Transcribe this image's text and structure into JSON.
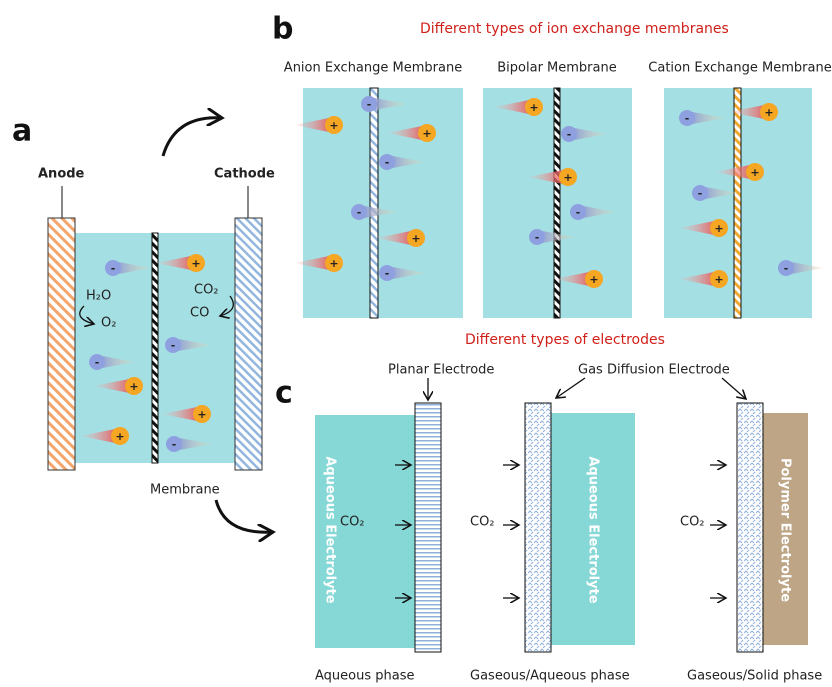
{
  "panel_a": {
    "label": "a",
    "anode": "Anode",
    "cathode": "Cathode",
    "membrane": "Membrane",
    "anode_reaction": {
      "reactant": "H₂O",
      "product": "O₂"
    },
    "cathode_reaction": {
      "reactant": "CO₂",
      "product": "CO"
    }
  },
  "panel_b": {
    "label": "b",
    "title": "Different types of ion exchange membranes",
    "membranes": [
      "Anion Exchange Membrane",
      "Bipolar Membrane",
      "Cation Exchange Membrane"
    ]
  },
  "panel_c": {
    "label": "c",
    "title": "Different types of electrodes",
    "electrodes": [
      "Planar Electrode",
      "Gas Diffusion Electrode"
    ],
    "configurations": [
      {
        "phase": "Aqueous phase",
        "gas": "CO₂",
        "electrolyte": "Aqueous Electrolyte"
      },
      {
        "phase": "Gaseous/Aqueous phase",
        "gas": "CO₂",
        "electrolyte": "Aqueous Electrolyte"
      },
      {
        "phase": "Gaseous/Solid phase",
        "gas": "CO₂",
        "electrolyte": "Polymer Electrolyte"
      }
    ]
  },
  "ion_charges": {
    "anion": "-",
    "cation": "+"
  }
}
